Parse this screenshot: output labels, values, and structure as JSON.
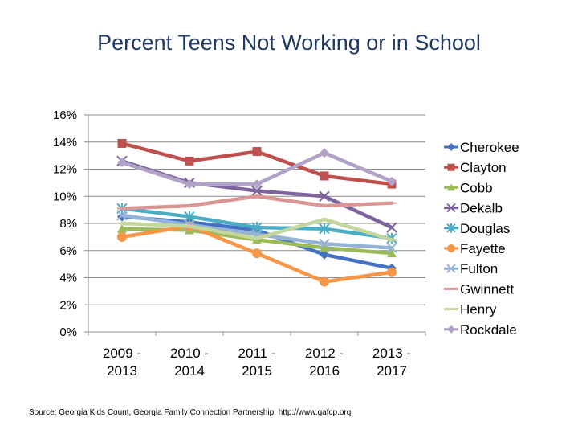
{
  "chart_data": {
    "type": "line",
    "title": "Percent Teens Not Working or in School",
    "categories": [
      "2009 - 2013",
      "2010 - 2014",
      "2011 - 2015",
      "2012 - 2016",
      "2013 - 2017"
    ],
    "category_lines": [
      [
        "2009 -",
        "2013"
      ],
      [
        "2010 -",
        "2014"
      ],
      [
        "2011 -",
        "2015"
      ],
      [
        "2012 -",
        "2016"
      ],
      [
        "2013 -",
        "2017"
      ]
    ],
    "ylim": [
      0,
      16
    ],
    "yticks": [
      0,
      2,
      4,
      6,
      8,
      10,
      12,
      14,
      16
    ],
    "ytick_labels": [
      "0%",
      "2%",
      "4%",
      "6%",
      "8%",
      "10%",
      "12%",
      "14%",
      "16%"
    ],
    "legend_position": "right",
    "series": [
      {
        "name": "Cherokee",
        "values": [
          8.5,
          8.1,
          7.5,
          5.7,
          4.7
        ],
        "color": "#4472c4",
        "marker": "diamond"
      },
      {
        "name": "Clayton",
        "values": [
          13.9,
          12.6,
          13.3,
          11.5,
          10.9
        ],
        "color": "#c0504d",
        "marker": "square"
      },
      {
        "name": "Cobb",
        "values": [
          7.6,
          7.5,
          6.8,
          6.2,
          5.8
        ],
        "color": "#9bbb59",
        "marker": "triangle"
      },
      {
        "name": "Dekalb",
        "values": [
          12.6,
          11.0,
          10.4,
          10.0,
          7.7
        ],
        "color": "#7e649e",
        "marker": "x"
      },
      {
        "name": "Douglas",
        "values": [
          9.1,
          8.5,
          7.7,
          7.6,
          6.9
        ],
        "color": "#4bacc6",
        "marker": "star"
      },
      {
        "name": "Fayette",
        "values": [
          7.0,
          7.8,
          5.8,
          3.7,
          4.4
        ],
        "color": "#f79646",
        "marker": "circle"
      },
      {
        "name": "Fulton",
        "values": [
          8.6,
          7.9,
          7.2,
          6.5,
          6.2
        ],
        "color": "#95b3d7",
        "marker": "x"
      },
      {
        "name": "Gwinnett",
        "values": [
          9.1,
          9.3,
          10.0,
          9.3,
          9.5
        ],
        "color": "#d99694",
        "marker": "dash"
      },
      {
        "name": "Henry",
        "values": [
          8.0,
          7.8,
          6.9,
          8.3,
          6.8
        ],
        "color": "#c3d69b",
        "marker": "dash"
      },
      {
        "name": "Rockdale",
        "values": [
          12.5,
          10.9,
          10.9,
          13.2,
          11.1
        ],
        "color": "#b3a2c7",
        "marker": "diamond"
      }
    ]
  },
  "source": {
    "label": "Source",
    "text": ": Georgia Kids Count, Georgia Family Connection Partnership, http://www.gafcp.org"
  }
}
